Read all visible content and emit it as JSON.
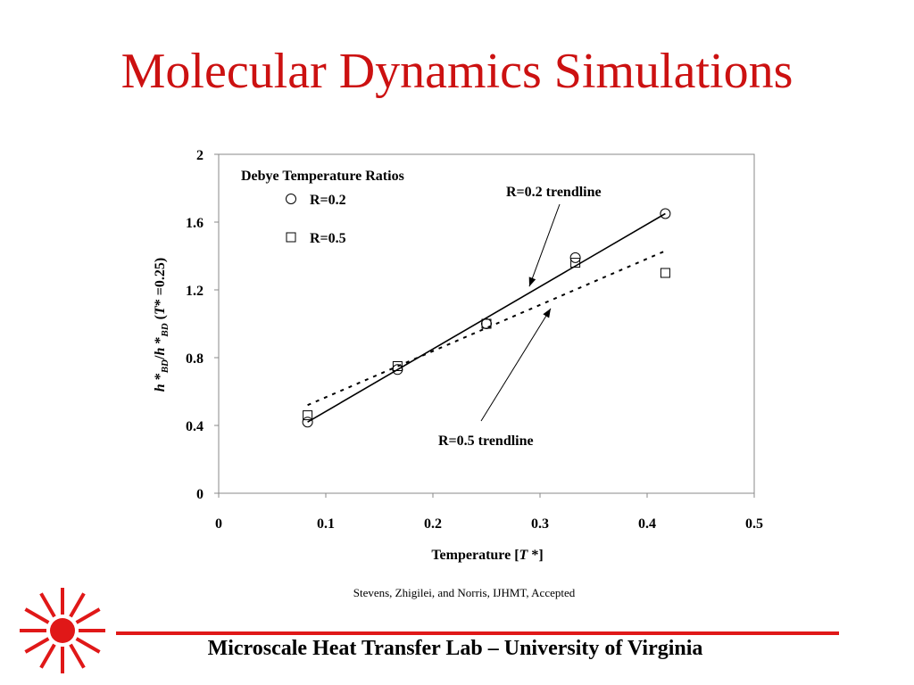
{
  "slide": {
    "title": "Molecular Dynamics Simulations",
    "citation": "Stevens, Zhigilei, and Norris, IJHMT, Accepted",
    "footer": "Microscale Heat Transfer Lab – University of Virginia",
    "accent_color": "#cc1111"
  },
  "chart_data": {
    "type": "scatter",
    "xlabel": "Temperature [T *]",
    "ylabel": "h *BD /h *BD (T* =0.25)",
    "xlim": [
      0,
      0.5
    ],
    "ylim": [
      0,
      2
    ],
    "xticks": [
      "0",
      "0.1",
      "0.2",
      "0.3",
      "0.4",
      "0.5"
    ],
    "yticks": [
      "0",
      "0.4",
      "0.8",
      "1.2",
      "1.6",
      "2"
    ],
    "grid": false,
    "legend": {
      "title": "Debye Temperature Ratios",
      "position": "top-left"
    },
    "series": [
      {
        "name": "R=0.2",
        "marker": "circle",
        "x": [
          0.083,
          0.167,
          0.25,
          0.333,
          0.417
        ],
        "y": [
          0.42,
          0.73,
          1.0,
          1.39,
          1.65
        ],
        "trendline": {
          "style": "solid",
          "x": [
            0.083,
            0.417
          ],
          "y": [
            0.42,
            1.65
          ]
        }
      },
      {
        "name": "R=0.5",
        "marker": "square",
        "x": [
          0.083,
          0.167,
          0.25,
          0.333,
          0.417
        ],
        "y": [
          0.46,
          0.75,
          1.0,
          1.36,
          1.3
        ],
        "trendline": {
          "style": "dashed",
          "x": [
            0.083,
            0.417
          ],
          "y": [
            0.52,
            1.43
          ]
        }
      }
    ],
    "annotations": [
      {
        "text": "R=0.2 trendline",
        "target": [
          0.29,
          1.22
        ]
      },
      {
        "text": "R=0.5 trendline",
        "target": [
          0.31,
          1.09
        ]
      }
    ]
  }
}
